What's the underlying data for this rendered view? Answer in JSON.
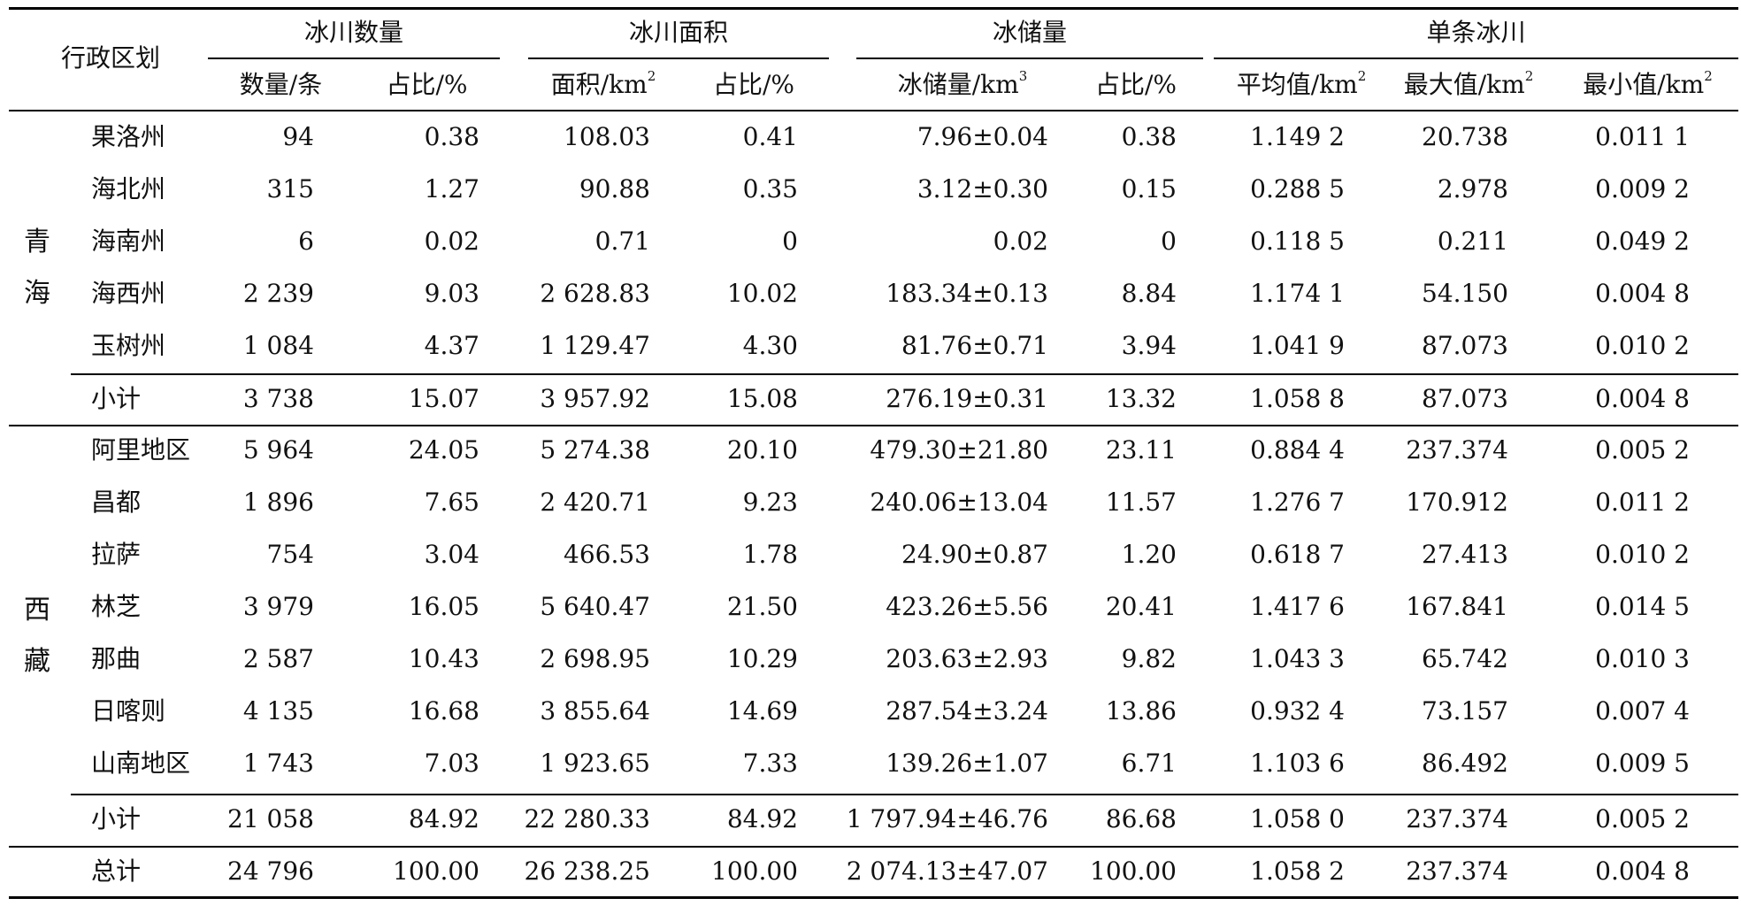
{
  "header": {
    "region": "行政区划",
    "groups": [
      "冰川数量",
      "冰川面积",
      "冰储量",
      "单条冰川"
    ],
    "sub": [
      "数量/条",
      "占比/%",
      "面积/km",
      "占比/%",
      "冰储量/km",
      "占比/%",
      "平均值/km",
      "最大值/km",
      "最小值/km"
    ],
    "sup2": "2",
    "sup3": "3"
  },
  "provinces": {
    "qinghai": [
      "青",
      "海"
    ],
    "xizang": [
      "西",
      "藏"
    ]
  },
  "rows": [
    [
      "果洛州",
      "94",
      "0.38",
      "108.03",
      "0.41",
      "7.96±0.04",
      "0.38",
      "1.149 2",
      "20.738",
      "0.011 1"
    ],
    [
      "海北州",
      "315",
      "1.27",
      "90.88",
      "0.35",
      "3.12±0.30",
      "0.15",
      "0.288 5",
      "2.978",
      "0.009 2"
    ],
    [
      "海南州",
      "6",
      "0.02",
      "0.71",
      "0",
      "0.02",
      "0",
      "0.118 5",
      "0.211",
      "0.049 2"
    ],
    [
      "海西州",
      "2 239",
      "9.03",
      "2 628.83",
      "10.02",
      "183.34±0.13",
      "8.84",
      "1.174 1",
      "54.150",
      "0.004 8"
    ],
    [
      "玉树州",
      "1 084",
      "4.37",
      "1 129.47",
      "4.30",
      "81.76±0.71",
      "3.94",
      "1.041 9",
      "87.073",
      "0.010 2"
    ],
    [
      "小计",
      "3 738",
      "15.07",
      "3 957.92",
      "15.08",
      "276.19±0.31",
      "13.32",
      "1.058 8",
      "87.073",
      "0.004 8"
    ],
    [
      "阿里地区",
      "5 964",
      "24.05",
      "5 274.38",
      "20.10",
      "479.30±21.80",
      "23.11",
      "0.884 4",
      "237.374",
      "0.005 2"
    ],
    [
      "昌都",
      "1 896",
      "7.65",
      "2 420.71",
      "9.23",
      "240.06±13.04",
      "11.57",
      "1.276 7",
      "170.912",
      "0.011 2"
    ],
    [
      "拉萨",
      "754",
      "3.04",
      "466.53",
      "1.78",
      "24.90±0.87",
      "1.20",
      "0.618 7",
      "27.413",
      "0.010 2"
    ],
    [
      "林芝",
      "3 979",
      "16.05",
      "5 640.47",
      "21.50",
      "423.26±5.56",
      "20.41",
      "1.417 6",
      "167.841",
      "0.014 5"
    ],
    [
      "那曲",
      "2 587",
      "10.43",
      "2 698.95",
      "10.29",
      "203.63±2.93",
      "9.82",
      "1.043 3",
      "65.742",
      "0.010 3"
    ],
    [
      "日喀则",
      "4 135",
      "16.68",
      "3 855.64",
      "14.69",
      "287.54±3.24",
      "13.86",
      "0.932 4",
      "73.157",
      "0.007 4"
    ],
    [
      "山南地区",
      "1 743",
      "7.03",
      "1 923.65",
      "7.33",
      "139.26±1.07",
      "6.71",
      "1.103 6",
      "86.492",
      "0.009 5"
    ],
    [
      "小计",
      "21 058",
      "84.92",
      "22 280.33",
      "84.92",
      "1 797.94±46.76",
      "86.68",
      "1.058 0",
      "237.374",
      "0.005 2"
    ],
    [
      "总计",
      "24 796",
      "100.00",
      "26 238.25",
      "100.00",
      "2 074.13±47.07",
      "100.00",
      "1.058 2",
      "237.374",
      "0.004 8"
    ]
  ]
}
